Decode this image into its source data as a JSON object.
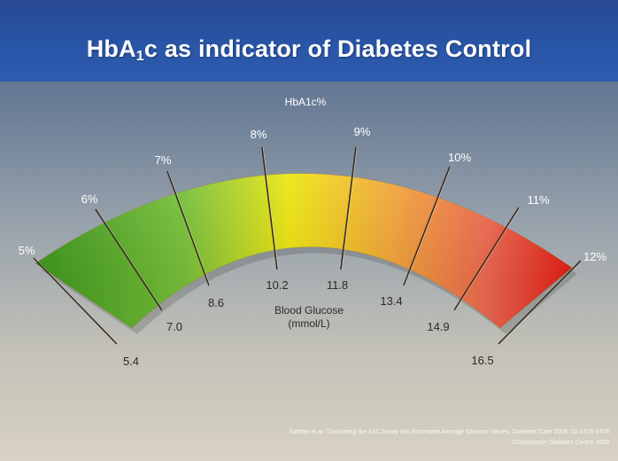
{
  "title": {
    "prefix": "HbA",
    "subscript": "1",
    "suffix": "c as indicator of Diabetes Control"
  },
  "gauge": {
    "top_label": "HbA1c%",
    "center_label_line1": "Blood Glucose",
    "center_label_line2": "(mmol/L)",
    "ticks": [
      {
        "hba1c": "5%",
        "glucose": "5.4"
      },
      {
        "hba1c": "6%",
        "glucose": "7.0"
      },
      {
        "hba1c": "7%",
        "glucose": "8.6"
      },
      {
        "hba1c": "8%",
        "glucose": "10.2"
      },
      {
        "hba1c": "9%",
        "glucose": "11.8"
      },
      {
        "hba1c": "10%",
        "glucose": "13.4"
      },
      {
        "hba1c": "11%",
        "glucose": "14.9"
      },
      {
        "hba1c": "12%",
        "glucose": "16.5"
      }
    ],
    "colors": {
      "green_dark": "#3e9a1e",
      "green": "#7cc63c",
      "yellow": "#f2ea10",
      "orange": "#f7a93a",
      "red_light": "#f26a52",
      "red": "#e81a10",
      "tick_line": "#3a2a1a"
    }
  },
  "citation": {
    "line1": "Nathan et al. Translating the A1C Assay Into Estimated Average Glucose Values. Diabetes Care 2008; 31:1473-1478",
    "line2": "Christchurch Diabetes Centre 2009"
  }
}
